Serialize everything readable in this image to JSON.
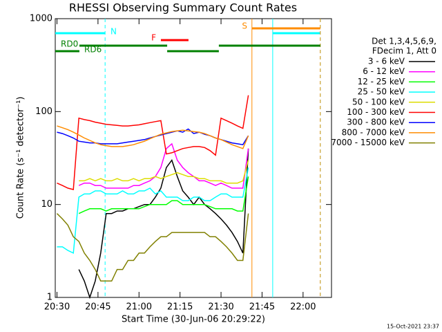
{
  "chart_data": {
    "type": "line",
    "title": "RHESSI Observing Summary Count Rates",
    "x_label": "Start Time (30-Jun-06 20:29:22)",
    "y_label": "Count Rate (s⁻¹ detector⁻¹)",
    "legend_header": [
      "Det 1,3,4,5,6,9,",
      "FDecim 1, Att 0"
    ],
    "footer": "15-Oct-2021 23:37",
    "log_y": true,
    "xlim": [
      1229.37,
      1330.4
    ],
    "ylim": [
      1,
      1000
    ],
    "xticks": [
      {
        "value": 1230,
        "label": "20:30"
      },
      {
        "value": 1245,
        "label": "20:45"
      },
      {
        "value": 1260,
        "label": "21:00"
      },
      {
        "value": 1275,
        "label": "21:15"
      },
      {
        "value": 1290,
        "label": "21:30"
      },
      {
        "value": 1305,
        "label": "21:45"
      },
      {
        "value": 1320,
        "label": "22:00"
      }
    ],
    "yticks": [
      1,
      10,
      100,
      1000
    ],
    "x": [
      1230,
      1232,
      1234,
      1236,
      1238,
      1240,
      1242,
      1244,
      1246,
      1248,
      1250,
      1252,
      1254,
      1256,
      1258,
      1260,
      1262,
      1264,
      1266,
      1268,
      1270,
      1272,
      1274,
      1276,
      1278,
      1280,
      1282,
      1284,
      1286,
      1288,
      1290,
      1292,
      1294,
      1296,
      1298,
      1300
    ],
    "series": [
      {
        "name": "3 - 6 keV",
        "color": "#000000",
        "values": [
          null,
          null,
          null,
          null,
          2,
          1.5,
          1,
          1.5,
          3,
          8,
          8,
          8.5,
          8.5,
          9,
          9,
          9.5,
          10,
          10,
          12,
          15,
          25,
          30,
          20,
          14,
          12,
          10,
          12,
          10,
          9,
          8,
          7,
          6,
          5,
          4,
          3,
          40
        ]
      },
      {
        "name": "6 - 12 keV",
        "color": "#ff00ff",
        "values": [
          null,
          null,
          null,
          null,
          16,
          17,
          17,
          16,
          16,
          15,
          15,
          15,
          15,
          15,
          16,
          16,
          17,
          18,
          20,
          25,
          40,
          45,
          30,
          25,
          22,
          20,
          18,
          18,
          17,
          16,
          17,
          16,
          15,
          15,
          15,
          40
        ]
      },
      {
        "name": "12 - 25 keV",
        "color": "#00ff00",
        "values": [
          null,
          null,
          null,
          null,
          8,
          8.5,
          9,
          9,
          9,
          8.5,
          9,
          9,
          9,
          9,
          9,
          9,
          9.5,
          10,
          10,
          10,
          10,
          11,
          11,
          10,
          10,
          10,
          10,
          10,
          9.5,
          9,
          9,
          9,
          9,
          8.5,
          8.5,
          20
        ]
      },
      {
        "name": "25 - 50 keV",
        "color": "#00ffff",
        "values": [
          3.5,
          3.5,
          3.2,
          3,
          12,
          13,
          13,
          14,
          14,
          13,
          13,
          13,
          14,
          13,
          13,
          14,
          14,
          15,
          13,
          14,
          12,
          12,
          12,
          11,
          11,
          12,
          12,
          11,
          11,
          12,
          13,
          13,
          12,
          12,
          12,
          25
        ]
      },
      {
        "name": "50 - 100 keV",
        "color": "#dddd00",
        "values": [
          null,
          null,
          null,
          null,
          18,
          18,
          19,
          18,
          19,
          18,
          18,
          19,
          18,
          18,
          19,
          18,
          19,
          19,
          20,
          19,
          20,
          21,
          22,
          21,
          20,
          20,
          19,
          19,
          18,
          18,
          18,
          17,
          17,
          17,
          18,
          30
        ]
      },
      {
        "name": "100 - 300 keV",
        "color": "#ff0000",
        "values": [
          17,
          16,
          15,
          14.5,
          85,
          82,
          80,
          77,
          75,
          73,
          72,
          71,
          70,
          70,
          71,
          72,
          74,
          76,
          78,
          80,
          35,
          36,
          38,
          40,
          41,
          42,
          42,
          41,
          38,
          34,
          85,
          80,
          75,
          70,
          66,
          150
        ]
      },
      {
        "name": "300 - 800 keV",
        "color": "#0000ff",
        "values": [
          60,
          58,
          55,
          52,
          48,
          47,
          46,
          46,
          45,
          45,
          45,
          45,
          46,
          47,
          48,
          49,
          50,
          52,
          54,
          56,
          58,
          60,
          62,
          60,
          65,
          58,
          60,
          57,
          55,
          52,
          50,
          48,
          46,
          45,
          44,
          55
        ]
      },
      {
        "name": "800 - 7000 keV",
        "color": "#ff8c00",
        "values": [
          70,
          67,
          64,
          60,
          56,
          52,
          49,
          46,
          44,
          43,
          42,
          42,
          42,
          43,
          44,
          46,
          48,
          51,
          54,
          57,
          59,
          61,
          62,
          63,
          62,
          61,
          60,
          58,
          55,
          52,
          50,
          47,
          44,
          42,
          40,
          55
        ]
      },
      {
        "name": "7000 - 15000 keV",
        "color": "#808000",
        "values": [
          8,
          7,
          6,
          4.5,
          4,
          3,
          2.5,
          2,
          1.5,
          1.5,
          1.5,
          2,
          2,
          2.5,
          2.5,
          3,
          3,
          3.5,
          4,
          4.5,
          4.5,
          5,
          5,
          5,
          5,
          5,
          5,
          5,
          4.5,
          4.5,
          4,
          3.5,
          3,
          2.5,
          2.5,
          8
        ]
      }
    ],
    "flags": [
      {
        "label": "N",
        "color": "#00ffff",
        "vlines": true,
        "spans": [
          [
            1229.37,
            1247.6
          ],
          [
            1308.9,
            1326.3
          ]
        ]
      },
      {
        "label": "F",
        "color": "#ff0000",
        "vlines": false,
        "spans": [
          [
            1268,
            1278.1
          ]
        ]
      },
      {
        "label": "S",
        "color": "#ff8c00",
        "vlines": true,
        "spans": [
          [
            1301.3,
            1326.3
          ]
        ]
      },
      {
        "label": "RD0",
        "color": "#008000",
        "vlines": false,
        "spans": [
          [
            1238.2,
            1270.3
          ],
          [
            1289.2,
            1326.3
          ]
        ]
      },
      {
        "label": "RD6",
        "color": "#008000",
        "vlines": false,
        "spans": [
          [
            1229.37,
            1238.2
          ],
          [
            1270.3,
            1289.2
          ]
        ]
      }
    ]
  }
}
